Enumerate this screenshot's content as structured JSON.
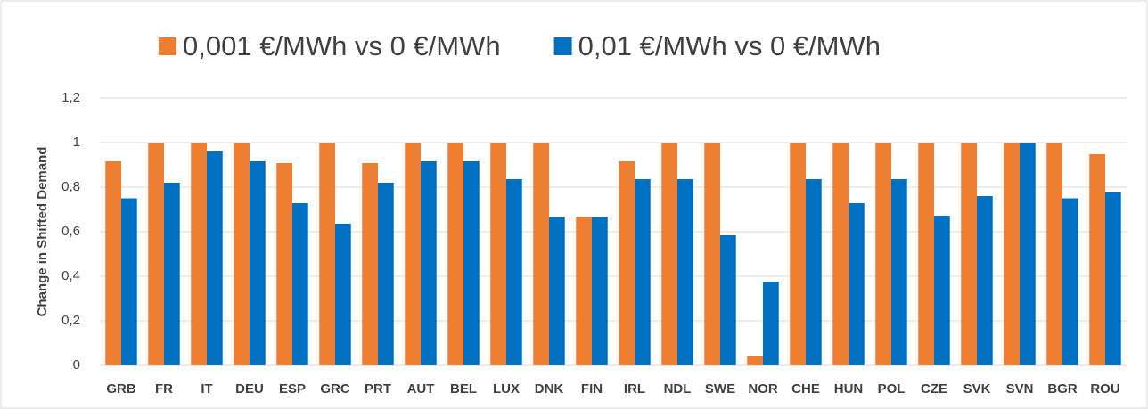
{
  "chart_data": {
    "type": "bar",
    "y_label": "Change in Shifted Demand",
    "categories": [
      "GRB",
      "FR",
      "IT",
      "DEU",
      "ESP",
      "GRC",
      "PRT",
      "AUT",
      "BEL",
      "LUX",
      "DNK",
      "FIN",
      "IRL",
      "NDL",
      "SWE",
      "NOR",
      "CHE",
      "HUN",
      "POL",
      "CZE",
      "SVK",
      "SVN",
      "BGR",
      "ROU"
    ],
    "series": [
      {
        "name": "0,001 €/MWh vs 0 €/MWh",
        "color": "#ed7d31",
        "values": [
          0.916,
          1,
          1,
          1,
          0.908,
          1,
          0.908,
          1,
          1,
          1,
          1,
          0.667,
          0.916,
          1,
          1,
          0.04,
          1,
          1,
          1,
          1,
          1,
          1,
          1,
          0.948
        ]
      },
      {
        "name": "0,01 €/MWh vs 0 €/MWh",
        "color": "#0070c0",
        "values": [
          0.75,
          0.82,
          0.96,
          0.916,
          0.728,
          0.636,
          0.82,
          0.916,
          0.916,
          0.836,
          0.667,
          0.667,
          0.836,
          0.836,
          0.584,
          0.376,
          0.836,
          0.728,
          0.836,
          0.672,
          0.76,
          1,
          0.75,
          0.776
        ]
      }
    ],
    "ylim": [
      0,
      1.2
    ],
    "yticks": [
      0,
      {
        "value": 0.2,
        "label": "0,2"
      },
      {
        "value": 0.4,
        "label": "0,4"
      },
      {
        "value": 0.6,
        "label": "0,6"
      },
      {
        "value": 0.8,
        "label": "0,8"
      },
      1,
      {
        "value": 1.2,
        "label": "1,2"
      }
    ],
    "grid": true,
    "legend": "top"
  }
}
